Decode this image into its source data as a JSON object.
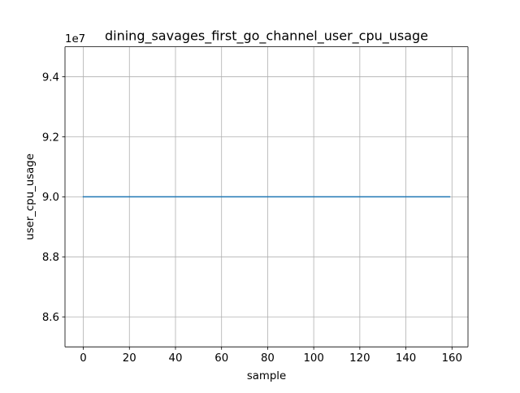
{
  "chart_data": {
    "type": "line",
    "title": "dining_savages_first_go_channel_user_cpu_usage",
    "xlabel": "sample",
    "ylabel": "user_cpu_usage",
    "y_offset_label": "1e7",
    "xlim": [
      -7.95,
      166.95
    ],
    "ylim": [
      8.5,
      9.5
    ],
    "x_ticks": [
      0,
      20,
      40,
      60,
      80,
      100,
      120,
      140,
      160
    ],
    "x_tick_labels": [
      "0",
      "20",
      "40",
      "60",
      "80",
      "100",
      "120",
      "140",
      "160"
    ],
    "y_ticks": [
      8.6,
      8.8,
      9.0,
      9.2,
      9.4
    ],
    "y_tick_labels": [
      "8.6",
      "8.8",
      "9.0",
      "9.2",
      "9.4"
    ],
    "grid": true,
    "series": [
      {
        "color": "#1f77b4",
        "x": [
          0,
          159
        ],
        "y": [
          9.0,
          9.0
        ]
      }
    ]
  }
}
